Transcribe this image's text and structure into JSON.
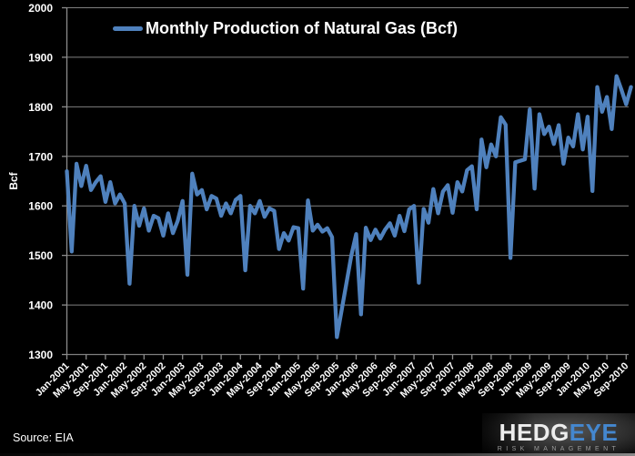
{
  "title": "Monthly Production of Natural Gas (Bcf)",
  "y_axis_title": "Bcf",
  "source_note": "Source: EIA",
  "logo": {
    "word_part1": "HEDG",
    "word_part2": "EYE",
    "tagline": "RISK MANAGEMENT"
  },
  "colors": {
    "background": "#000000",
    "line": "#4F81BD",
    "grid": "#7f7f7f",
    "axis": "#8c8c8c",
    "text": "#ffffff",
    "logo_blue": "#4487cf",
    "logo_gray": "#ededed",
    "tagline_gray": "#9a9a9a"
  },
  "chart_data": {
    "type": "line",
    "title": "Monthly Production of Natural Gas (Bcf)",
    "ylabel": "Bcf",
    "ylim": [
      1300,
      2000
    ],
    "y_tick_step": 100,
    "grid": "horizontal-only",
    "legend_position": "top-center",
    "x_tick_every": 4,
    "x": [
      "Jan-2001",
      "Feb-2001",
      "Mar-2001",
      "Apr-2001",
      "May-2001",
      "Jun-2001",
      "Jul-2001",
      "Aug-2001",
      "Sep-2001",
      "Oct-2001",
      "Nov-2001",
      "Dec-2001",
      "Jan-2002",
      "Feb-2002",
      "Mar-2002",
      "Apr-2002",
      "May-2002",
      "Jun-2002",
      "Jul-2002",
      "Aug-2002",
      "Sep-2002",
      "Oct-2002",
      "Nov-2002",
      "Dec-2002",
      "Jan-2003",
      "Feb-2003",
      "Mar-2003",
      "Apr-2003",
      "May-2003",
      "Jun-2003",
      "Jul-2003",
      "Aug-2003",
      "Sep-2003",
      "Oct-2003",
      "Nov-2003",
      "Dec-2003",
      "Jan-2004",
      "Feb-2004",
      "Mar-2004",
      "Apr-2004",
      "May-2004",
      "Jun-2004",
      "Jul-2004",
      "Aug-2004",
      "Sep-2004",
      "Oct-2004",
      "Nov-2004",
      "Dec-2004",
      "Jan-2005",
      "Feb-2005",
      "Mar-2005",
      "Apr-2005",
      "May-2005",
      "Jun-2005",
      "Jul-2005",
      "Aug-2005",
      "Sep-2005",
      "Oct-2005",
      "Nov-2005",
      "Dec-2005",
      "Jan-2006",
      "Feb-2006",
      "Mar-2006",
      "Apr-2006",
      "May-2006",
      "Jun-2006",
      "Jul-2006",
      "Aug-2006",
      "Sep-2006",
      "Oct-2006",
      "Nov-2006",
      "Dec-2006",
      "Jan-2007",
      "Feb-2007",
      "Mar-2007",
      "Apr-2007",
      "May-2007",
      "Jun-2007",
      "Jul-2007",
      "Aug-2007",
      "Sep-2007",
      "Oct-2007",
      "Nov-2007",
      "Dec-2007",
      "Jan-2008",
      "Feb-2008",
      "Mar-2008",
      "Apr-2008",
      "May-2008",
      "Jun-2008",
      "Jul-2008",
      "Aug-2008",
      "Sep-2008",
      "Oct-2008",
      "Nov-2008",
      "Dec-2008",
      "Jan-2009",
      "Feb-2009",
      "Mar-2009",
      "Apr-2009",
      "May-2009",
      "Jun-2009",
      "Jul-2009",
      "Aug-2009",
      "Sep-2009",
      "Oct-2009",
      "Nov-2009",
      "Dec-2009",
      "Jan-2010",
      "Feb-2010",
      "Mar-2010",
      "Apr-2010",
      "May-2010",
      "Jun-2010",
      "Jul-2010",
      "Aug-2010",
      "Sep-2010",
      "Oct-2010"
    ],
    "values": [
      1670,
      1508,
      1685,
      1640,
      1681,
      1632,
      1648,
      1660,
      1608,
      1648,
      1605,
      1623,
      1605,
      1443,
      1600,
      1560,
      1595,
      1550,
      1580,
      1575,
      1540,
      1585,
      1545,
      1570,
      1610,
      1461,
      1665,
      1623,
      1632,
      1593,
      1620,
      1615,
      1580,
      1605,
      1585,
      1612,
      1620,
      1470,
      1600,
      1585,
      1610,
      1578,
      1595,
      1590,
      1513,
      1545,
      1530,
      1557,
      1555,
      1433,
      1611,
      1550,
      1562,
      1548,
      1555,
      1537,
      1335,
      1390,
      1445,
      1500,
      1543,
      1381,
      1556,
      1531,
      1552,
      1534,
      1552,
      1565,
      1540,
      1580,
      1549,
      1593,
      1600,
      1445,
      1594,
      1566,
      1634,
      1585,
      1629,
      1642,
      1586,
      1648,
      1629,
      1672,
      1680,
      1593,
      1734,
      1678,
      1724,
      1700,
      1779,
      1764,
      1495,
      1688,
      1691,
      1694,
      1795,
      1635,
      1785,
      1745,
      1760,
      1725,
      1763,
      1685,
      1738,
      1720,
      1785,
      1714,
      1780,
      1630,
      1840,
      1790,
      1820,
      1755,
      1862,
      1835,
      1805,
      1840
    ]
  }
}
